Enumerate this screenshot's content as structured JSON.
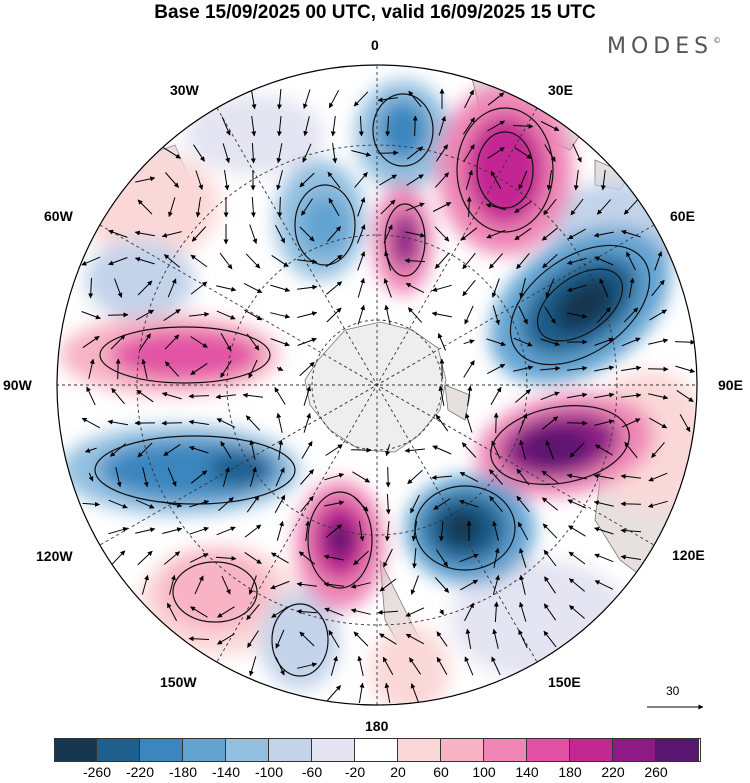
{
  "header": {
    "title": "Base 15/09/2025 00 UTC, valid 16/09/2025 15 UTC",
    "brand": "MODES",
    "brand_mark": "©"
  },
  "map": {
    "projection": "polar stereographic (south pole)",
    "longitude_labels": [
      "0",
      "30E",
      "60E",
      "90E",
      "120E",
      "150E",
      "180",
      "150W",
      "120W",
      "90W",
      "60W",
      "30W"
    ],
    "vector_scale_label": "30"
  },
  "legend": {
    "ticks": [
      "-260",
      "-220",
      "-180",
      "-140",
      "-100",
      "-60",
      "-20",
      "20",
      "60",
      "100",
      "140",
      "180",
      "220",
      "260"
    ],
    "colors": [
      "#16364f",
      "#1f5f8e",
      "#3b86be",
      "#62a3d1",
      "#93bfe0",
      "#c3d3ea",
      "#e4e4f2",
      "#ffffff",
      "#fbd8d8",
      "#f8b3c4",
      "#ef86b5",
      "#e252a4",
      "#c32892",
      "#8d1a85",
      "#5a1670"
    ]
  }
}
